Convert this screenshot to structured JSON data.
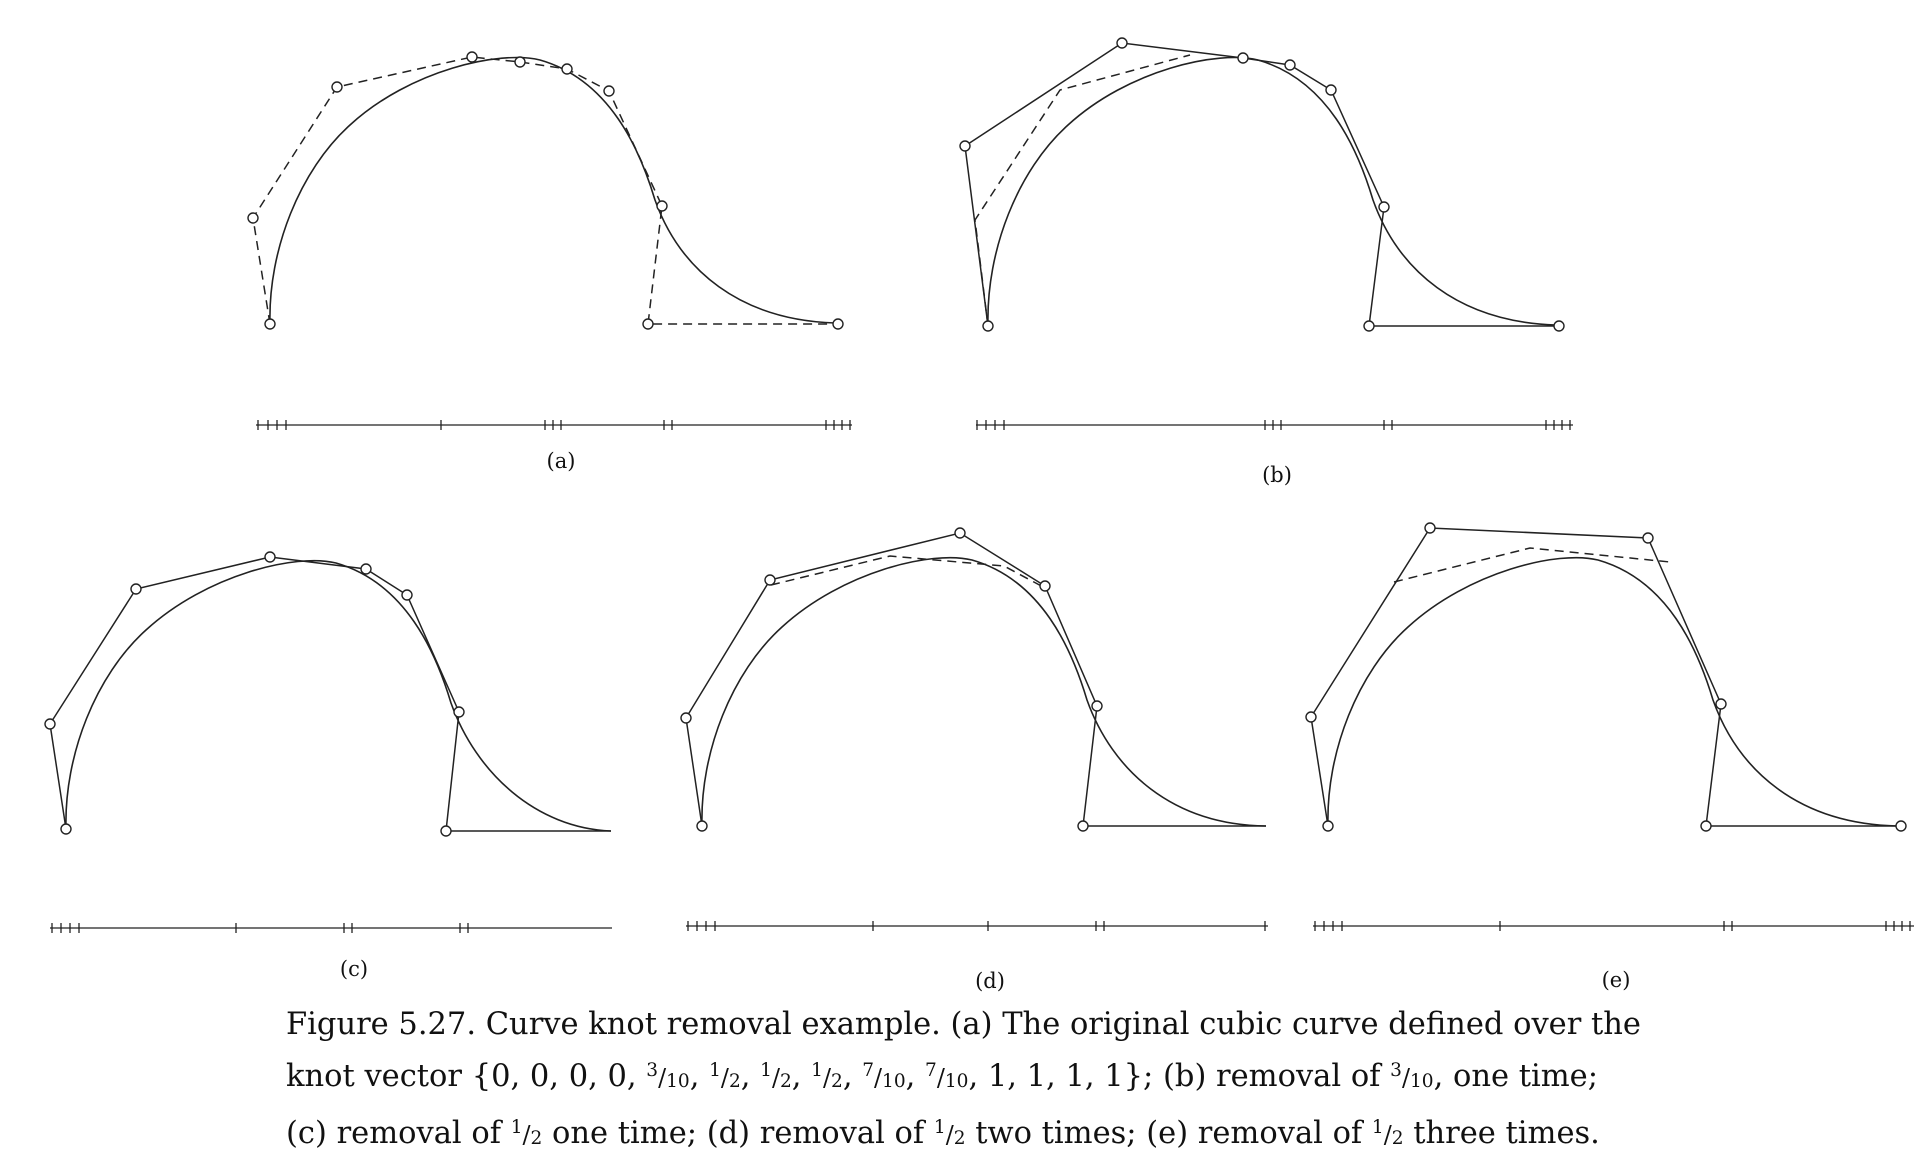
{
  "figure": {
    "panel_labels": [
      "(a)",
      "(b)",
      "(c)",
      "(d)",
      "(e)"
    ]
  },
  "caption": {
    "number": "Figure 5.27.",
    "text_1": " Curve knot removal example. (a) The original cubic curve defined over the",
    "text_2a": "knot vector {0, 0, 0, 0, ",
    "f310_num": "3",
    "f310_den": "10",
    "sep": ", ",
    "f12_num": "1",
    "f12_den": "2",
    "f710_num": "7",
    "f710_den": "10",
    "text_2b": ", 1, 1, 1, 1}; (b) removal of ",
    "text_2c": ", one time;",
    "text_3a": "(c) removal of ",
    "text_3b": " one time; (d) removal of ",
    "text_3c": " two times; (e) removal of ",
    "text_3d": " three times."
  }
}
